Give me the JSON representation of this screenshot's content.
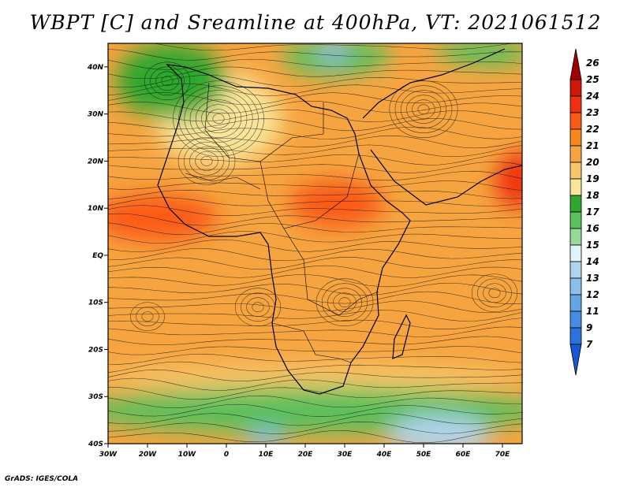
{
  "title": "WBPT [C] and Sreamline at 400hPa, VT: 2021061512",
  "credit": "GrADS: IGES/COLA",
  "map": {
    "x_ticks": [
      "30W",
      "20W",
      "10W",
      "0",
      "10E",
      "20E",
      "30E",
      "40E",
      "50E",
      "60E",
      "70E"
    ],
    "y_ticks": [
      "40N",
      "30N",
      "20N",
      "10N",
      "EQ",
      "10S",
      "20S",
      "30S",
      "40S"
    ],
    "lon_range": [
      -30,
      75
    ],
    "lat_range": [
      -40,
      45
    ],
    "colorbar": {
      "labels": [
        "26",
        "25",
        "24",
        "23",
        "22",
        "21",
        "20",
        "19",
        "18",
        "17",
        "16",
        "15",
        "14",
        "13",
        "12",
        "11",
        "9",
        "7"
      ],
      "colors": [
        "#a00000",
        "#d01808",
        "#f03010",
        "#fa5a16",
        "#f6861e",
        "#f6a440",
        "#f8c66a",
        "#fbe59a",
        "#2ea72e",
        "#5bbf5b",
        "#98d898",
        "#e0f5fa",
        "#b0d4ee",
        "#8cc0ea",
        "#64a6e4",
        "#468ce0",
        "#2c72dc",
        "#1858d2"
      ]
    },
    "fields": [
      {
        "name": "sahara-anticyclone-yellow",
        "lon": -2,
        "lat": 29,
        "rx": 16,
        "ry": 10,
        "color": "#fbe59a"
      },
      {
        "name": "west-green-cell",
        "lon": -14,
        "lat": 37,
        "rx": 14,
        "ry": 8,
        "color": "#2ea72e"
      },
      {
        "name": "med-green",
        "lon": 28,
        "lat": 42,
        "rx": 14,
        "ry": 4,
        "color": "#5bbf5b"
      },
      {
        "name": "med-blue",
        "lon": 27,
        "lat": 43,
        "rx": 4,
        "ry": 2,
        "color": "#8cc0ea"
      },
      {
        "name": "northeast-green",
        "lon": 65,
        "lat": 43,
        "rx": 12,
        "ry": 3,
        "color": "#5bbf5b"
      },
      {
        "name": "arabia-orange",
        "lon": 50,
        "lat": 28,
        "rx": 20,
        "ry": 11,
        "color": "#f6a440"
      },
      {
        "name": "east-red",
        "lon": 74,
        "lat": 16,
        "rx": 6,
        "ry": 6,
        "color": "#f03010"
      },
      {
        "name": "west-africa-red",
        "lon": -18,
        "lat": 8,
        "rx": 16,
        "ry": 5,
        "color": "#fa5a16"
      },
      {
        "name": "sudan-red",
        "lon": 28,
        "lat": 11,
        "rx": 12,
        "ry": 5,
        "color": "#fa5a16"
      },
      {
        "name": "south-yellow-band",
        "lon": 22,
        "lat": -26,
        "rx": 55,
        "ry": 3,
        "color": "#f8c66a"
      },
      {
        "name": "south-green-band",
        "lon": 22,
        "lat": -33,
        "rx": 60,
        "ry": 5,
        "color": "#5bbf5b"
      },
      {
        "name": "south-blue-east",
        "lon": 54,
        "lat": -38,
        "rx": 13,
        "ry": 4,
        "color": "#b0d4ee"
      },
      {
        "name": "south-blue-west",
        "lon": 10,
        "lat": -39,
        "rx": 5,
        "ry": 2,
        "color": "#8cc0ea"
      }
    ]
  }
}
